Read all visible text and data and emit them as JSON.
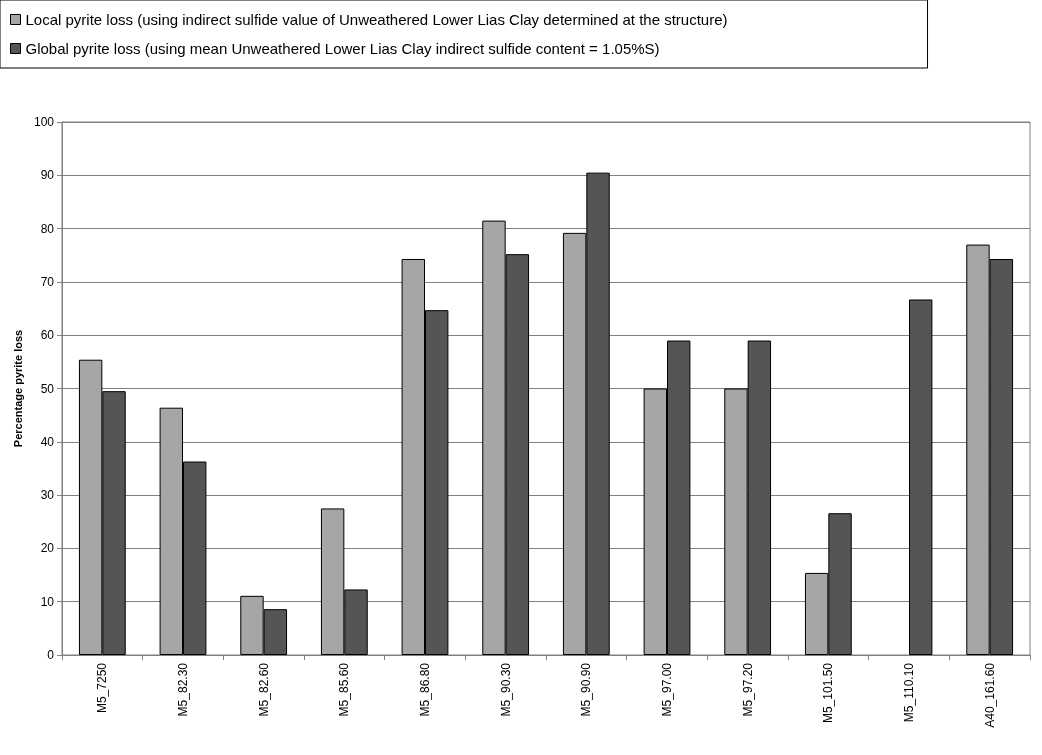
{
  "chart_data": {
    "type": "bar",
    "ylabel": "Percentage pyrite loss",
    "categories": [
      "M5_7250",
      "M5_82.30",
      "M5_82.60",
      "M5_85.60",
      "M5_86.80",
      "M5_90.30",
      "M5_90.90",
      "M5_97.00",
      "M5_97.20",
      "M5_101.50",
      "M5_110.10",
      "A40_161.60"
    ],
    "series": [
      {
        "name": "Local pyrite loss (using indirect sulfide value of Unweathered Lower Lias Clay determined at the structure)",
        "color": "#a6a6a6",
        "values": [
          55.4,
          46.4,
          11.1,
          27.5,
          74.3,
          81.5,
          79.2,
          50.0,
          50.0,
          15.4,
          null,
          77.0
        ]
      },
      {
        "name": "Global pyrite loss (using mean Unweathered Lower Lias Clay indirect sulfide content = 1.05%S)",
        "color": "#555555",
        "values": [
          49.5,
          36.3,
          8.6,
          12.3,
          64.7,
          75.2,
          90.5,
          59.0,
          59.0,
          26.6,
          66.7,
          74.3
        ]
      }
    ],
    "ylim": [
      0,
      100
    ],
    "yticks": [
      0,
      10,
      20,
      30,
      40,
      50,
      60,
      70,
      80,
      90,
      100
    ],
    "grid": "y",
    "legend": "top"
  }
}
